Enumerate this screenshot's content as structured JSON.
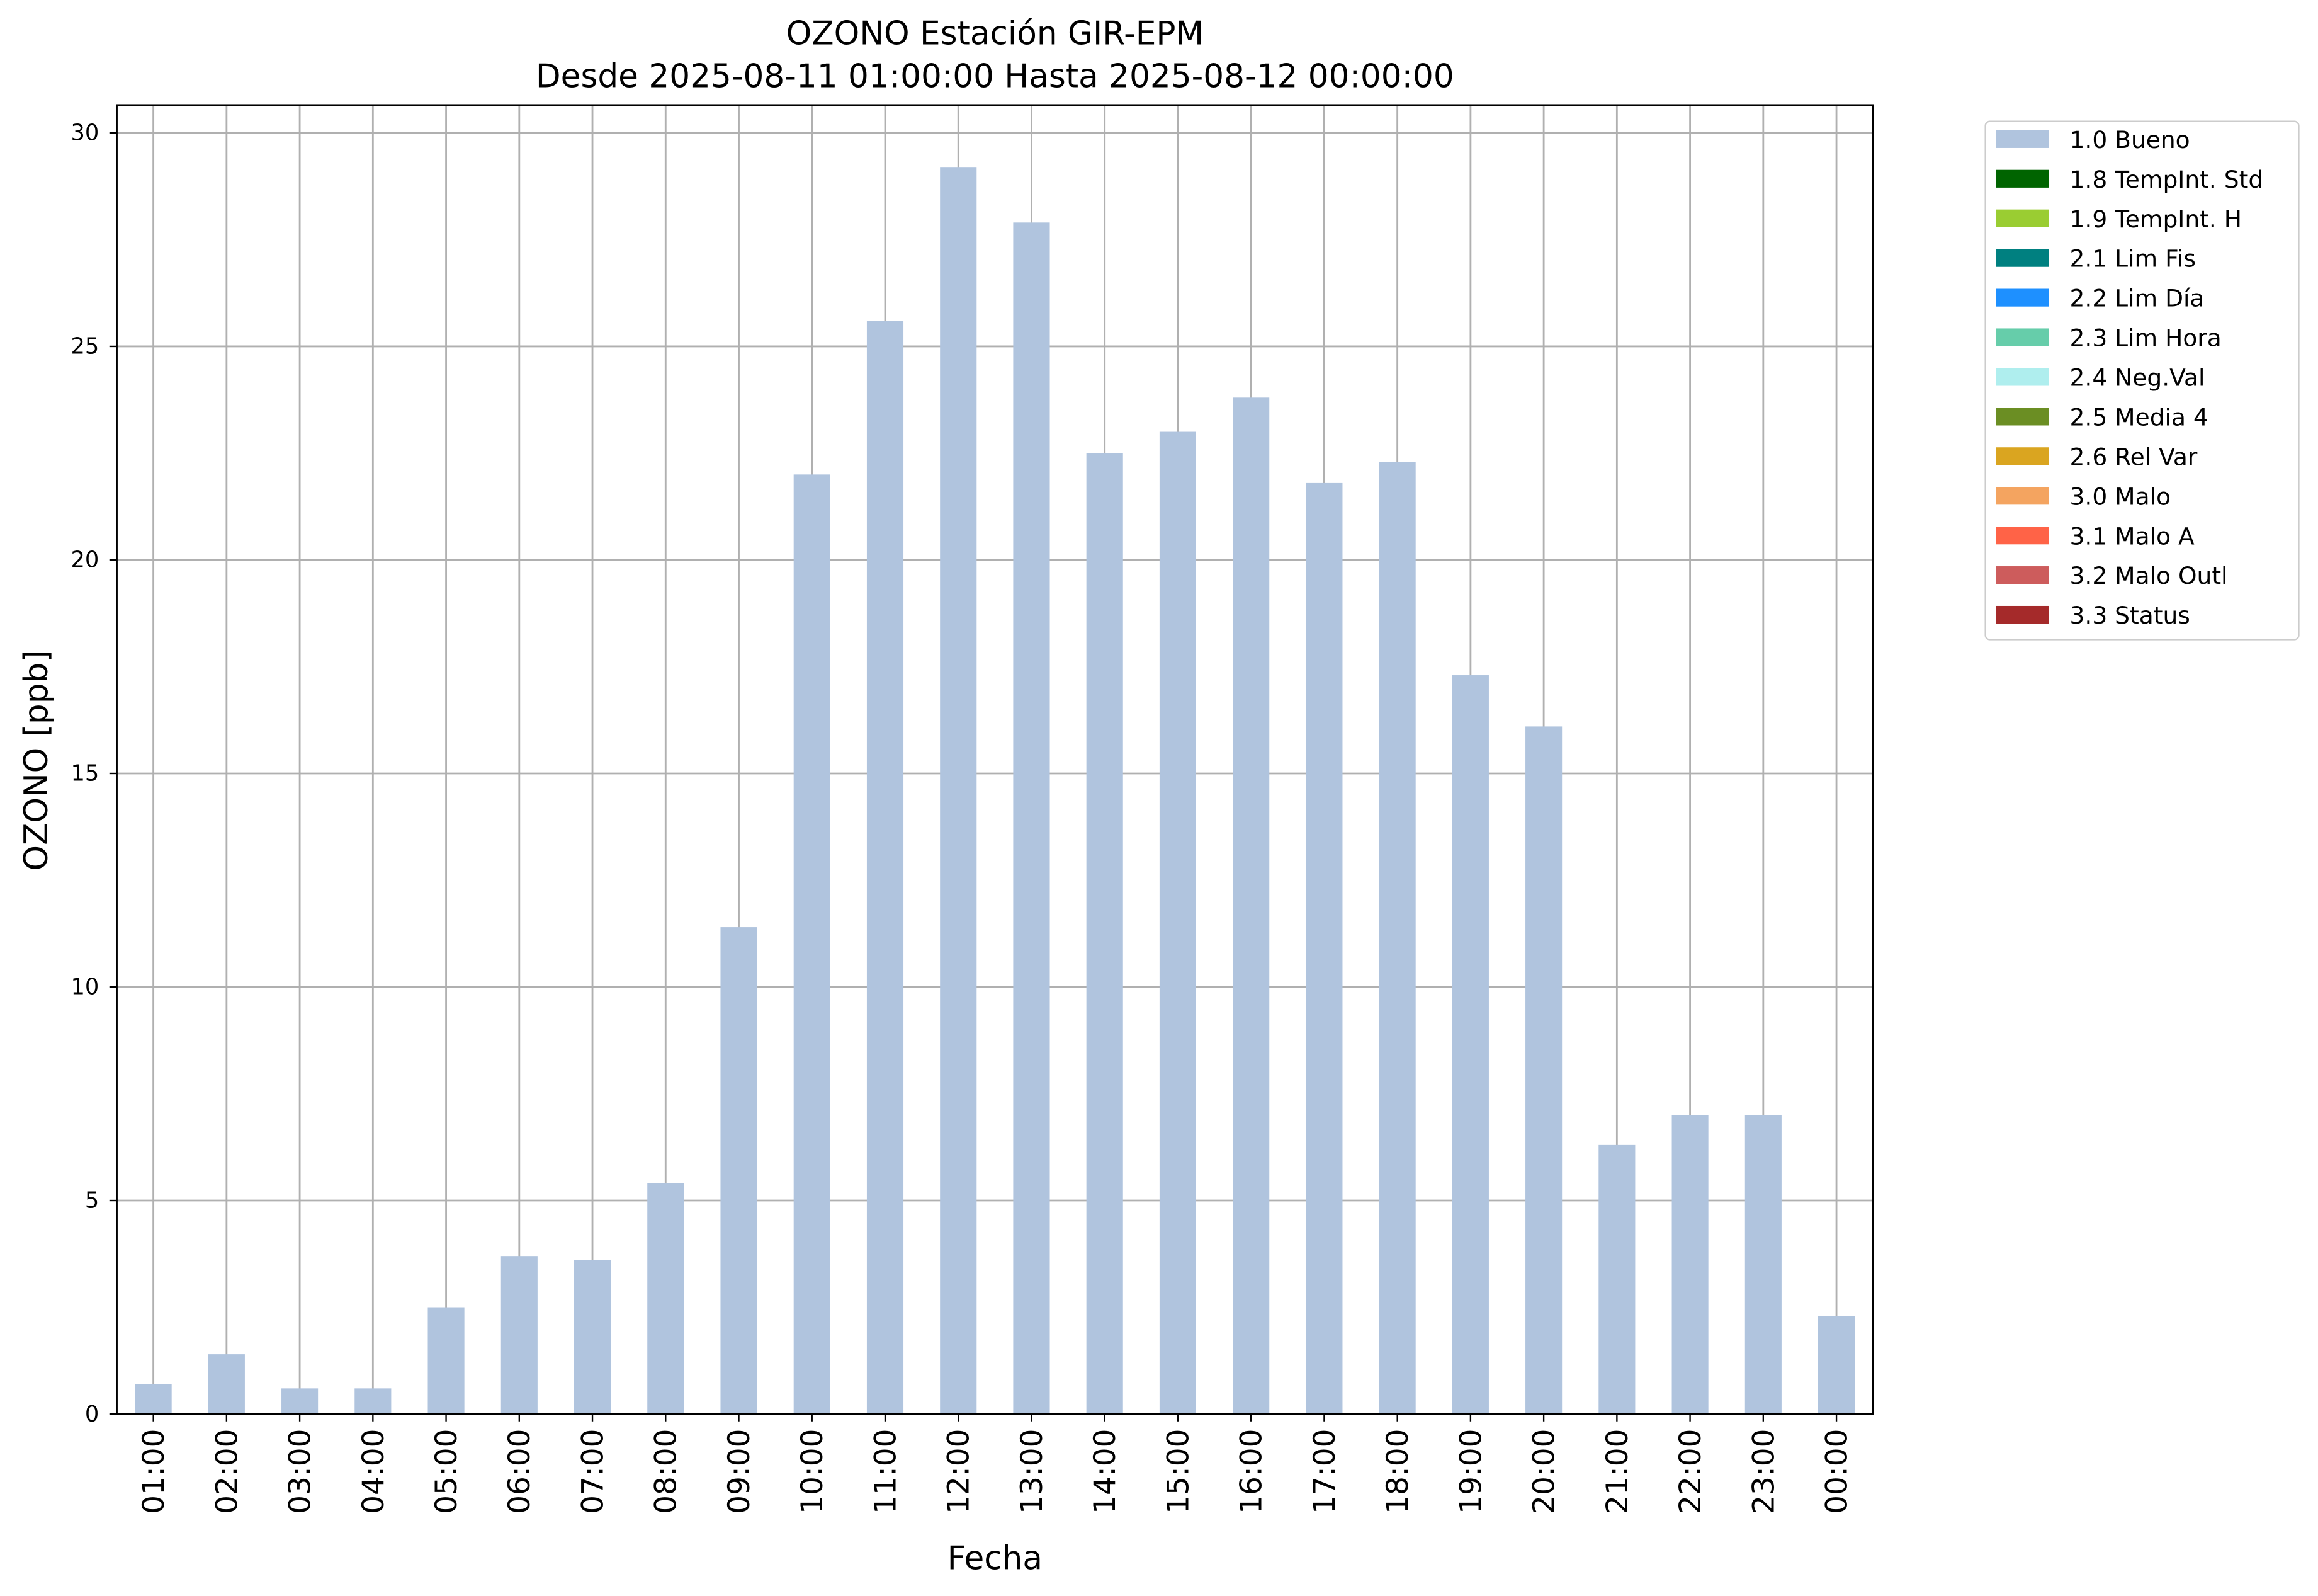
{
  "chart_data": {
    "type": "bar",
    "title": "OZONO Estación GIR-EPM",
    "subtitle": "Desde 2025-08-11 01:00:00 Hasta 2025-08-12 00:00:00",
    "x_label": "Fecha",
    "y_label": "OZONO [ppb]",
    "categories": [
      "01:00",
      "02:00",
      "03:00",
      "04:00",
      "05:00",
      "06:00",
      "07:00",
      "08:00",
      "09:00",
      "10:00",
      "11:00",
      "12:00",
      "13:00",
      "14:00",
      "15:00",
      "16:00",
      "17:00",
      "18:00",
      "19:00",
      "20:00",
      "21:00",
      "22:00",
      "23:00",
      "00:00"
    ],
    "values": [
      0.7,
      1.4,
      0.6,
      0.6,
      2.5,
      3.7,
      3.6,
      5.4,
      11.4,
      22.0,
      25.6,
      29.2,
      27.9,
      22.5,
      23.0,
      23.8,
      21.8,
      22.3,
      17.3,
      16.1,
      6.3,
      7.0,
      7.0,
      2.3
    ],
    "color": "#b0c4de",
    "ylim": [
      0,
      30.65
    ],
    "yticks": [
      0,
      5,
      10,
      15,
      20,
      25,
      30
    ],
    "grid": true,
    "legend_position": "outside-right",
    "legend": [
      {
        "label": "1.0 Bueno",
        "color": "#b0c4de"
      },
      {
        "label": "1.8 TempInt. Std",
        "color": "#006400"
      },
      {
        "label": "1.9 TempInt. H",
        "color": "#9acd32"
      },
      {
        "label": "2.1 Lim Fis",
        "color": "#008080"
      },
      {
        "label": "2.2 Lim Día",
        "color": "#1e90ff"
      },
      {
        "label": "2.3 Lim Hora",
        "color": "#66cdaa"
      },
      {
        "label": "2.4 Neg.Val",
        "color": "#afeeee"
      },
      {
        "label": "2.5 Media 4",
        "color": "#6b8e23"
      },
      {
        "label": "2.6 Rel Var",
        "color": "#daa520"
      },
      {
        "label": "3.0 Malo",
        "color": "#f4a460"
      },
      {
        "label": "3.1 Malo A",
        "color": "#ff6347"
      },
      {
        "label": "3.2 Malo Outl",
        "color": "#cd5c5c"
      },
      {
        "label": "3.3 Status",
        "color": "#a52a2a"
      }
    ]
  }
}
